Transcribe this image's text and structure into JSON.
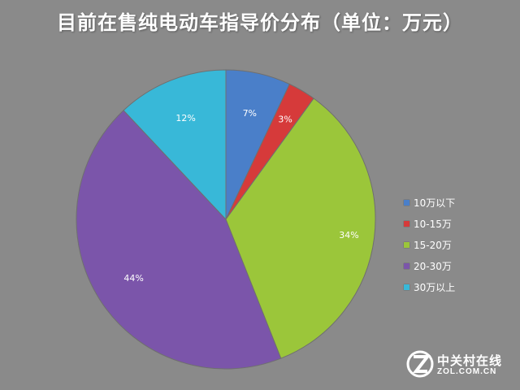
{
  "chart_data": {
    "type": "pie",
    "title": "目前在售纯电动车指导价分布（单位：万元）",
    "categories": [
      "10万以下",
      "10-15万",
      "15-20万",
      "20-30万",
      "30万以上"
    ],
    "values": [
      7,
      3,
      34,
      44,
      12
    ],
    "value_labels": [
      "7%",
      "3%",
      "34%",
      "44%",
      "12%"
    ],
    "colors": [
      "#4a7fc9",
      "#d63a3a",
      "#9bc63a",
      "#7b55aa",
      "#38b8d8"
    ],
    "start_angle": "12 o'clock",
    "direction": "clockwise",
    "legend_position": "right"
  },
  "watermark": {
    "brand": "中关村在线",
    "domain": "ZOL.COM.CN",
    "logo_icon": "zol-z-logo-icon"
  }
}
